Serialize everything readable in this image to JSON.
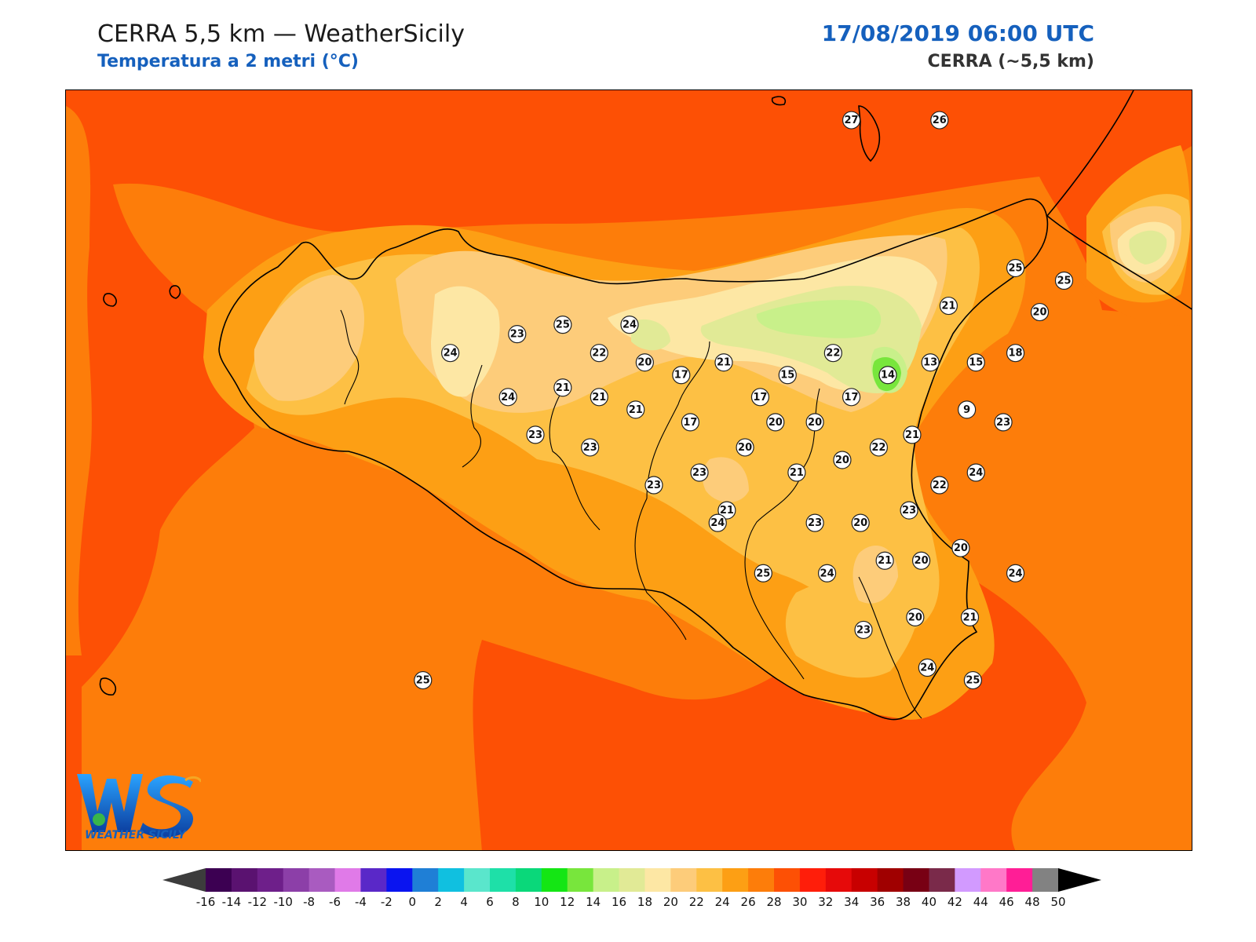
{
  "header": {
    "title": "CERRA 5,5 km — WeatherSicily",
    "subtitle": "Temperatura a 2 metri (°C)",
    "datetime": "17/08/2019 06:00 UTC",
    "model": "CERRA (~5,5 km)"
  },
  "logo": {
    "mark": "WS",
    "text": "WEATHER SICILY"
  },
  "colorbar": {
    "ticks": [
      "-16",
      "-14",
      "-12",
      "-10",
      "-8",
      "-6",
      "-4",
      "-2",
      "0",
      "2",
      "4",
      "6",
      "8",
      "10",
      "12",
      "14",
      "16",
      "18",
      "20",
      "22",
      "24",
      "26",
      "28",
      "30",
      "32",
      "34",
      "36",
      "38",
      "40",
      "42",
      "44",
      "46",
      "48",
      "50"
    ],
    "colors": [
      "#3c0052",
      "#5a1270",
      "#6e1f8a",
      "#8c3fa8",
      "#a95bc0",
      "#e07ae8",
      "#5a28c8",
      "#0a14f0",
      "#1f7fd6",
      "#10c0e0",
      "#5ae6cc",
      "#1ee0a8",
      "#0ad87a",
      "#14e614",
      "#78e63c",
      "#c8f08a",
      "#e1ea96",
      "#fde7a4",
      "#fdcc7a",
      "#fdc044",
      "#fd9f14",
      "#fd7d0a",
      "#fd5005",
      "#ff1e0a",
      "#e60a0a",
      "#c80000",
      "#a00000",
      "#780014",
      "#7a2a4a",
      "#d29aff",
      "#ff78c8",
      "#ff1e96",
      "#828282",
      "#373737"
    ],
    "under_color": "#3c3c3c",
    "over_color": "#000000"
  },
  "stations": [
    {
      "v": "27",
      "lon": 14.955,
      "lat": 38.805
    },
    {
      "v": "26",
      "lon": 15.245,
      "lat": 38.805
    },
    {
      "v": "25",
      "lon": 14.005,
      "lat": 38.155
    },
    {
      "v": "24",
      "lon": 14.225,
      "lat": 38.155
    },
    {
      "v": "23",
      "lon": 13.855,
      "lat": 38.125
    },
    {
      "v": "25",
      "lon": 15.495,
      "lat": 38.335
    },
    {
      "v": "25",
      "lon": 15.655,
      "lat": 38.295
    },
    {
      "v": "21",
      "lon": 15.275,
      "lat": 38.215
    },
    {
      "v": "20",
      "lon": 15.575,
      "lat": 38.195
    },
    {
      "v": "24",
      "lon": 13.635,
      "lat": 38.065
    },
    {
      "v": "22",
      "lon": 14.125,
      "lat": 38.065
    },
    {
      "v": "22",
      "lon": 14.895,
      "lat": 38.065
    },
    {
      "v": "18",
      "lon": 15.495,
      "lat": 38.065
    },
    {
      "v": "20",
      "lon": 14.275,
      "lat": 38.035
    },
    {
      "v": "21",
      "lon": 14.535,
      "lat": 38.035
    },
    {
      "v": "13",
      "lon": 15.215,
      "lat": 38.035
    },
    {
      "v": "15",
      "lon": 15.365,
      "lat": 38.035
    },
    {
      "v": "17",
      "lon": 14.395,
      "lat": 37.995
    },
    {
      "v": "15",
      "lon": 14.745,
      "lat": 37.995
    },
    {
      "v": "14",
      "lon": 15.075,
      "lat": 37.995
    },
    {
      "v": "21",
      "lon": 14.005,
      "lat": 37.955
    },
    {
      "v": "24",
      "lon": 13.825,
      "lat": 37.925
    },
    {
      "v": "21",
      "lon": 14.125,
      "lat": 37.925
    },
    {
      "v": "17",
      "lon": 14.655,
      "lat": 37.925
    },
    {
      "v": "17",
      "lon": 14.955,
      "lat": 37.925
    },
    {
      "v": "21",
      "lon": 14.245,
      "lat": 37.885
    },
    {
      "v": "9",
      "lon": 15.335,
      "lat": 37.885
    },
    {
      "v": "17",
      "lon": 14.425,
      "lat": 37.845
    },
    {
      "v": "20",
      "lon": 14.705,
      "lat": 37.845
    },
    {
      "v": "20",
      "lon": 14.835,
      "lat": 37.845
    },
    {
      "v": "23",
      "lon": 15.455,
      "lat": 37.845
    },
    {
      "v": "23",
      "lon": 13.915,
      "lat": 37.805
    },
    {
      "v": "21",
      "lon": 15.155,
      "lat": 37.805
    },
    {
      "v": "20",
      "lon": 14.605,
      "lat": 37.765
    },
    {
      "v": "23",
      "lon": 14.095,
      "lat": 37.765
    },
    {
      "v": "22",
      "lon": 15.045,
      "lat": 37.765
    },
    {
      "v": "20",
      "lon": 14.925,
      "lat": 37.725
    },
    {
      "v": "23",
      "lon": 14.455,
      "lat": 37.685
    },
    {
      "v": "21",
      "lon": 14.775,
      "lat": 37.685
    },
    {
      "v": "24",
      "lon": 15.365,
      "lat": 37.685
    },
    {
      "v": "23",
      "lon": 14.305,
      "lat": 37.645
    },
    {
      "v": "22",
      "lon": 15.245,
      "lat": 37.645
    },
    {
      "v": "21",
      "lon": 14.545,
      "lat": 37.565
    },
    {
      "v": "23",
      "lon": 15.145,
      "lat": 37.565
    },
    {
      "v": "24",
      "lon": 14.515,
      "lat": 37.525
    },
    {
      "v": "23",
      "lon": 14.835,
      "lat": 37.525
    },
    {
      "v": "20",
      "lon": 14.985,
      "lat": 37.525
    },
    {
      "v": "20",
      "lon": 15.315,
      "lat": 37.445
    },
    {
      "v": "21",
      "lon": 15.065,
      "lat": 37.405
    },
    {
      "v": "20",
      "lon": 15.185,
      "lat": 37.405
    },
    {
      "v": "25",
      "lon": 14.665,
      "lat": 37.365
    },
    {
      "v": "24",
      "lon": 14.875,
      "lat": 37.365
    },
    {
      "v": "24",
      "lon": 15.495,
      "lat": 37.365
    },
    {
      "v": "20",
      "lon": 15.165,
      "lat": 37.225
    },
    {
      "v": "21",
      "lon": 15.345,
      "lat": 37.225
    },
    {
      "v": "23",
      "lon": 14.995,
      "lat": 37.185
    },
    {
      "v": "24",
      "lon": 15.205,
      "lat": 37.065
    },
    {
      "v": "25",
      "lon": 15.355,
      "lat": 37.025
    },
    {
      "v": "25",
      "lon": 13.545,
      "lat": 37.025
    }
  ]
}
